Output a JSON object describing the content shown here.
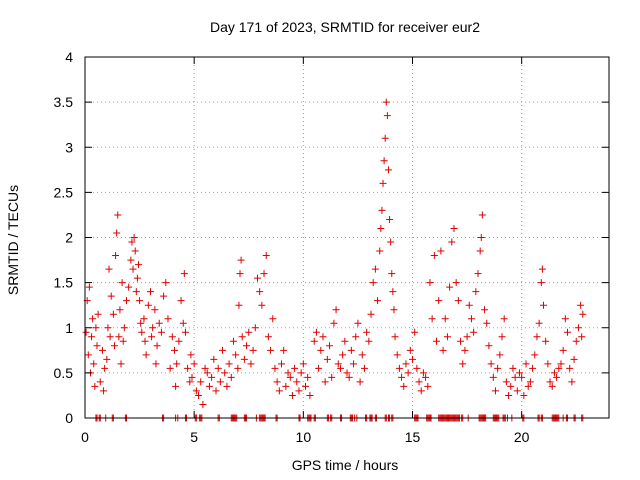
{
  "chart_data": {
    "type": "scatter",
    "title": "Day 171 of 2023, SRMTID for receiver eur2",
    "xlabel": "GPS time / hours",
    "ylabel": "SRMTID / TECUs",
    "xlim": [
      0,
      24
    ],
    "ylim": [
      0,
      4
    ],
    "x_ticks": [
      0,
      5,
      10,
      15,
      20
    ],
    "x_tick_labels": [
      "0",
      "5",
      "10",
      "15",
      "20"
    ],
    "y_ticks": [
      0,
      0.5,
      1,
      1.5,
      2,
      2.5,
      3,
      3.5,
      4
    ],
    "y_tick_labels": [
      "0",
      "0.5",
      "1",
      "1.5",
      "2",
      "2.5",
      "3",
      "3.5",
      "4"
    ],
    "grid": true,
    "marker": "+",
    "series_color": "#e00000",
    "series": [
      {
        "name": "SRMTID",
        "description": "dense scatter of '+' markers; approximate sample of visible clusters",
        "points": [
          [
            0.05,
            0.95
          ],
          [
            0.1,
            1.3
          ],
          [
            0.15,
            0.7
          ],
          [
            0.2,
            1.45
          ],
          [
            0.25,
            0.5
          ],
          [
            0.3,
            0.9
          ],
          [
            0.35,
            1.1
          ],
          [
            0.4,
            0.6
          ],
          [
            0.45,
            0.35
          ],
          [
            0.5,
            1.0
          ],
          [
            0.55,
            0.8
          ],
          [
            0.6,
            1.15
          ],
          [
            0.7,
            0.4
          ],
          [
            0.8,
            0.75
          ],
          [
            0.85,
            0.3
          ],
          [
            0.9,
            0.55
          ],
          [
            1.0,
            0.65
          ],
          [
            1.05,
            1.0
          ],
          [
            1.1,
            1.65
          ],
          [
            1.15,
            0.9
          ],
          [
            1.2,
            1.35
          ],
          [
            1.3,
            1.15
          ],
          [
            1.35,
            0.8
          ],
          [
            1.4,
            1.8
          ],
          [
            1.45,
            2.05
          ],
          [
            1.5,
            2.25
          ],
          [
            1.55,
            0.9
          ],
          [
            1.6,
            1.2
          ],
          [
            1.65,
            0.6
          ],
          [
            1.7,
            1.5
          ],
          [
            1.75,
            0.85
          ],
          [
            1.8,
            1.0
          ],
          [
            1.9,
            1.3
          ],
          [
            2.0,
            1.45
          ],
          [
            2.1,
            1.75
          ],
          [
            2.15,
            1.95
          ],
          [
            2.2,
            1.65
          ],
          [
            2.25,
            2.0
          ],
          [
            2.3,
            1.85
          ],
          [
            2.35,
            1.4
          ],
          [
            2.4,
            1.55
          ],
          [
            2.45,
            1.7
          ],
          [
            2.5,
            1.3
          ],
          [
            2.55,
            1.05
          ],
          [
            2.6,
            0.95
          ],
          [
            2.7,
            1.1
          ],
          [
            2.75,
            0.85
          ],
          [
            2.8,
            0.7
          ],
          [
            2.9,
            1.25
          ],
          [
            3.0,
            1.4
          ],
          [
            3.05,
            0.9
          ],
          [
            3.1,
            1.0
          ],
          [
            3.2,
            1.2
          ],
          [
            3.25,
            0.6
          ],
          [
            3.3,
            0.8
          ],
          [
            3.4,
            1.05
          ],
          [
            3.5,
            0.95
          ],
          [
            3.6,
            1.35
          ],
          [
            3.7,
            1.5
          ],
          [
            3.8,
            1.1
          ],
          [
            3.9,
            0.55
          ],
          [
            4.0,
            0.9
          ],
          [
            4.1,
            0.75
          ],
          [
            4.15,
            0.35
          ],
          [
            4.2,
            0.6
          ],
          [
            4.3,
            0.85
          ],
          [
            4.4,
            1.3
          ],
          [
            4.5,
            1.05
          ],
          [
            4.55,
            1.6
          ],
          [
            4.6,
            0.95
          ],
          [
            4.7,
            0.55
          ],
          [
            4.8,
            0.4
          ],
          [
            4.85,
            0.7
          ],
          [
            4.9,
            0.45
          ],
          [
            5.0,
            0.6
          ],
          [
            5.1,
            0.3
          ],
          [
            5.2,
            0.25
          ],
          [
            5.3,
            0.4
          ],
          [
            5.4,
            0.15
          ],
          [
            5.5,
            0.55
          ],
          [
            5.6,
            0.5
          ],
          [
            5.7,
            0.35
          ],
          [
            5.8,
            0.45
          ],
          [
            5.9,
            0.65
          ],
          [
            6.0,
            0.3
          ],
          [
            6.1,
            0.55
          ],
          [
            6.2,
            0.4
          ],
          [
            6.3,
            0.75
          ],
          [
            6.4,
            0.5
          ],
          [
            6.5,
            0.35
          ],
          [
            6.6,
            0.6
          ],
          [
            6.7,
            0.45
          ],
          [
            6.8,
            0.85
          ],
          [
            6.9,
            0.7
          ],
          [
            7.0,
            0.55
          ],
          [
            7.05,
            1.25
          ],
          [
            7.1,
            1.6
          ],
          [
            7.15,
            1.75
          ],
          [
            7.2,
            0.9
          ],
          [
            7.3,
            0.65
          ],
          [
            7.4,
            0.8
          ],
          [
            7.5,
            0.95
          ],
          [
            7.6,
            0.6
          ],
          [
            7.7,
            0.75
          ],
          [
            7.8,
            1.0
          ],
          [
            7.9,
            1.55
          ],
          [
            8.0,
            1.4
          ],
          [
            8.1,
            1.25
          ],
          [
            8.2,
            1.6
          ],
          [
            8.3,
            1.8
          ],
          [
            8.4,
            0.9
          ],
          [
            8.5,
            0.75
          ],
          [
            8.6,
            1.1
          ],
          [
            8.7,
            0.55
          ],
          [
            8.8,
            0.4
          ],
          [
            8.9,
            0.3
          ],
          [
            9.0,
            0.6
          ],
          [
            9.1,
            0.75
          ],
          [
            9.2,
            0.35
          ],
          [
            9.3,
            0.5
          ],
          [
            9.4,
            0.45
          ],
          [
            9.5,
            0.25
          ],
          [
            9.6,
            0.55
          ],
          [
            9.7,
            0.4
          ],
          [
            9.8,
            0.3
          ],
          [
            9.9,
            0.5
          ],
          [
            10.0,
            0.6
          ],
          [
            10.1,
            0.35
          ],
          [
            10.2,
            0.45
          ],
          [
            10.3,
            0.25
          ],
          [
            10.5,
            0.85
          ],
          [
            10.6,
            0.95
          ],
          [
            10.7,
            0.55
          ],
          [
            10.8,
            0.75
          ],
          [
            10.9,
            0.9
          ],
          [
            11.0,
            0.4
          ],
          [
            11.1,
            0.65
          ],
          [
            11.2,
            0.8
          ],
          [
            11.3,
            0.45
          ],
          [
            11.4,
            1.05
          ],
          [
            11.5,
            1.2
          ],
          [
            11.6,
            0.6
          ],
          [
            11.7,
            0.55
          ],
          [
            11.8,
            0.7
          ],
          [
            11.9,
            0.85
          ],
          [
            12.0,
            0.5
          ],
          [
            12.1,
            0.45
          ],
          [
            12.2,
            0.75
          ],
          [
            12.3,
            0.6
          ],
          [
            12.4,
            0.9
          ],
          [
            12.5,
            1.05
          ],
          [
            12.6,
            0.4
          ],
          [
            12.7,
            0.7
          ],
          [
            12.8,
            0.55
          ],
          [
            12.9,
            0.95
          ],
          [
            13.0,
            0.85
          ],
          [
            13.1,
            1.15
          ],
          [
            13.2,
            1.5
          ],
          [
            13.3,
            1.65
          ],
          [
            13.4,
            1.3
          ],
          [
            13.5,
            1.85
          ],
          [
            13.55,
            2.1
          ],
          [
            13.6,
            2.3
          ],
          [
            13.65,
            2.6
          ],
          [
            13.7,
            2.85
          ],
          [
            13.75,
            3.1
          ],
          [
            13.8,
            3.5
          ],
          [
            13.85,
            3.35
          ],
          [
            13.9,
            2.75
          ],
          [
            13.95,
            2.2
          ],
          [
            14.0,
            1.95
          ],
          [
            14.05,
            1.6
          ],
          [
            14.1,
            1.4
          ],
          [
            14.15,
            1.2
          ],
          [
            14.2,
            0.9
          ],
          [
            14.3,
            0.7
          ],
          [
            14.4,
            0.55
          ],
          [
            14.5,
            0.45
          ],
          [
            14.6,
            0.35
          ],
          [
            14.7,
            0.6
          ],
          [
            14.8,
            0.5
          ],
          [
            14.9,
            0.75
          ],
          [
            15.0,
            0.65
          ],
          [
            15.1,
            0.95
          ],
          [
            15.2,
            0.55
          ],
          [
            15.3,
            0.4
          ],
          [
            15.4,
            0.3
          ],
          [
            15.5,
            0.5
          ],
          [
            15.6,
            0.45
          ],
          [
            15.7,
            0.35
          ],
          [
            15.8,
            1.5
          ],
          [
            15.9,
            1.1
          ],
          [
            16.0,
            1.8
          ],
          [
            16.1,
            0.85
          ],
          [
            16.2,
            1.3
          ],
          [
            16.3,
            1.85
          ],
          [
            16.4,
            0.75
          ],
          [
            16.5,
            1.1
          ],
          [
            16.6,
            0.9
          ],
          [
            16.7,
            1.45
          ],
          [
            16.8,
            1.95
          ],
          [
            16.9,
            2.1
          ],
          [
            17.0,
            1.5
          ],
          [
            17.1,
            1.3
          ],
          [
            17.2,
            0.85
          ],
          [
            17.3,
            0.6
          ],
          [
            17.4,
            0.75
          ],
          [
            17.5,
            0.9
          ],
          [
            17.6,
            1.25
          ],
          [
            17.7,
            1.1
          ],
          [
            17.8,
            0.95
          ],
          [
            17.9,
            1.4
          ],
          [
            18.0,
            1.6
          ],
          [
            18.1,
            1.85
          ],
          [
            18.15,
            2.0
          ],
          [
            18.2,
            2.25
          ],
          [
            18.3,
            1.2
          ],
          [
            18.4,
            1.05
          ],
          [
            18.5,
            0.8
          ],
          [
            18.6,
            0.6
          ],
          [
            18.7,
            0.45
          ],
          [
            18.8,
            0.3
          ],
          [
            18.9,
            0.55
          ],
          [
            19.0,
            0.7
          ],
          [
            19.1,
            0.9
          ],
          [
            19.2,
            1.1
          ],
          [
            19.3,
            0.4
          ],
          [
            19.4,
            0.25
          ],
          [
            19.5,
            0.35
          ],
          [
            19.6,
            0.55
          ],
          [
            19.7,
            0.45
          ],
          [
            19.8,
            0.3
          ],
          [
            19.9,
            0.5
          ],
          [
            20.0,
            0.45
          ],
          [
            20.1,
            0.25
          ],
          [
            20.2,
            0.6
          ],
          [
            20.3,
            0.35
          ],
          [
            20.4,
            0.4
          ],
          [
            20.5,
            0.55
          ],
          [
            20.6,
            0.7
          ],
          [
            20.7,
            0.9
          ],
          [
            20.8,
            1.05
          ],
          [
            20.9,
            1.5
          ],
          [
            20.95,
            1.65
          ],
          [
            21.0,
            1.25
          ],
          [
            21.1,
            0.85
          ],
          [
            21.2,
            0.6
          ],
          [
            21.3,
            0.4
          ],
          [
            21.4,
            0.35
          ],
          [
            21.5,
            0.5
          ],
          [
            21.6,
            0.45
          ],
          [
            21.7,
            0.55
          ],
          [
            21.8,
            0.6
          ],
          [
            21.9,
            0.75
          ],
          [
            22.0,
            1.1
          ],
          [
            22.1,
            0.95
          ],
          [
            22.2,
            0.55
          ],
          [
            22.3,
            0.4
          ],
          [
            22.4,
            0.65
          ],
          [
            22.5,
            0.85
          ],
          [
            22.6,
            1.0
          ],
          [
            22.7,
            1.25
          ],
          [
            22.75,
            0.9
          ],
          [
            22.8,
            1.15
          ]
        ],
        "zero_points": [
          0.5,
          0.55,
          0.65,
          0.7,
          0.95,
          1.25,
          1.3,
          1.85,
          1.9,
          3.55,
          3.6,
          4.15,
          4.25,
          4.6,
          4.65,
          5.05,
          5.1,
          5.25,
          5.3,
          5.35,
          6.1,
          6.15,
          6.7,
          6.75,
          6.8,
          6.85,
          6.9,
          6.95,
          7.3,
          7.35,
          7.4,
          7.85,
          8.0,
          8.05,
          8.1,
          8.15,
          8.2,
          8.25,
          8.75,
          8.8,
          9.8,
          9.85,
          10.2,
          10.25,
          10.3,
          10.35,
          10.5,
          10.55,
          11.1,
          11.15,
          11.25,
          11.3,
          11.7,
          11.75,
          12.15,
          12.2,
          12.25,
          12.35,
          12.45,
          12.85,
          12.9,
          13.05,
          13.1,
          13.15,
          13.3,
          13.35,
          13.75,
          13.8,
          13.9,
          13.95,
          14.05,
          14.1,
          15.1,
          15.15,
          15.2,
          15.25,
          15.65,
          15.7,
          15.75,
          15.8,
          15.85,
          16.2,
          16.25,
          16.3,
          16.35,
          16.4,
          16.45,
          16.5,
          16.55,
          16.6,
          16.65,
          16.7,
          16.75,
          16.8,
          16.85,
          16.9,
          16.95,
          17.0,
          17.05,
          17.1,
          17.15,
          17.25,
          17.3,
          17.55,
          18.05,
          18.1,
          18.15,
          18.2,
          18.25,
          18.3,
          18.35,
          18.7,
          18.75,
          18.8,
          18.85,
          18.9,
          18.95,
          19.15,
          19.2,
          19.25,
          19.35,
          19.55,
          20.05,
          20.1,
          20.75,
          20.8,
          20.9,
          20.95,
          21.4,
          21.45,
          21.5,
          21.55,
          21.6,
          21.65,
          21.7,
          21.9,
          22.05,
          22.1,
          22.4,
          22.45,
          22.75,
          22.8
        ]
      }
    ]
  }
}
